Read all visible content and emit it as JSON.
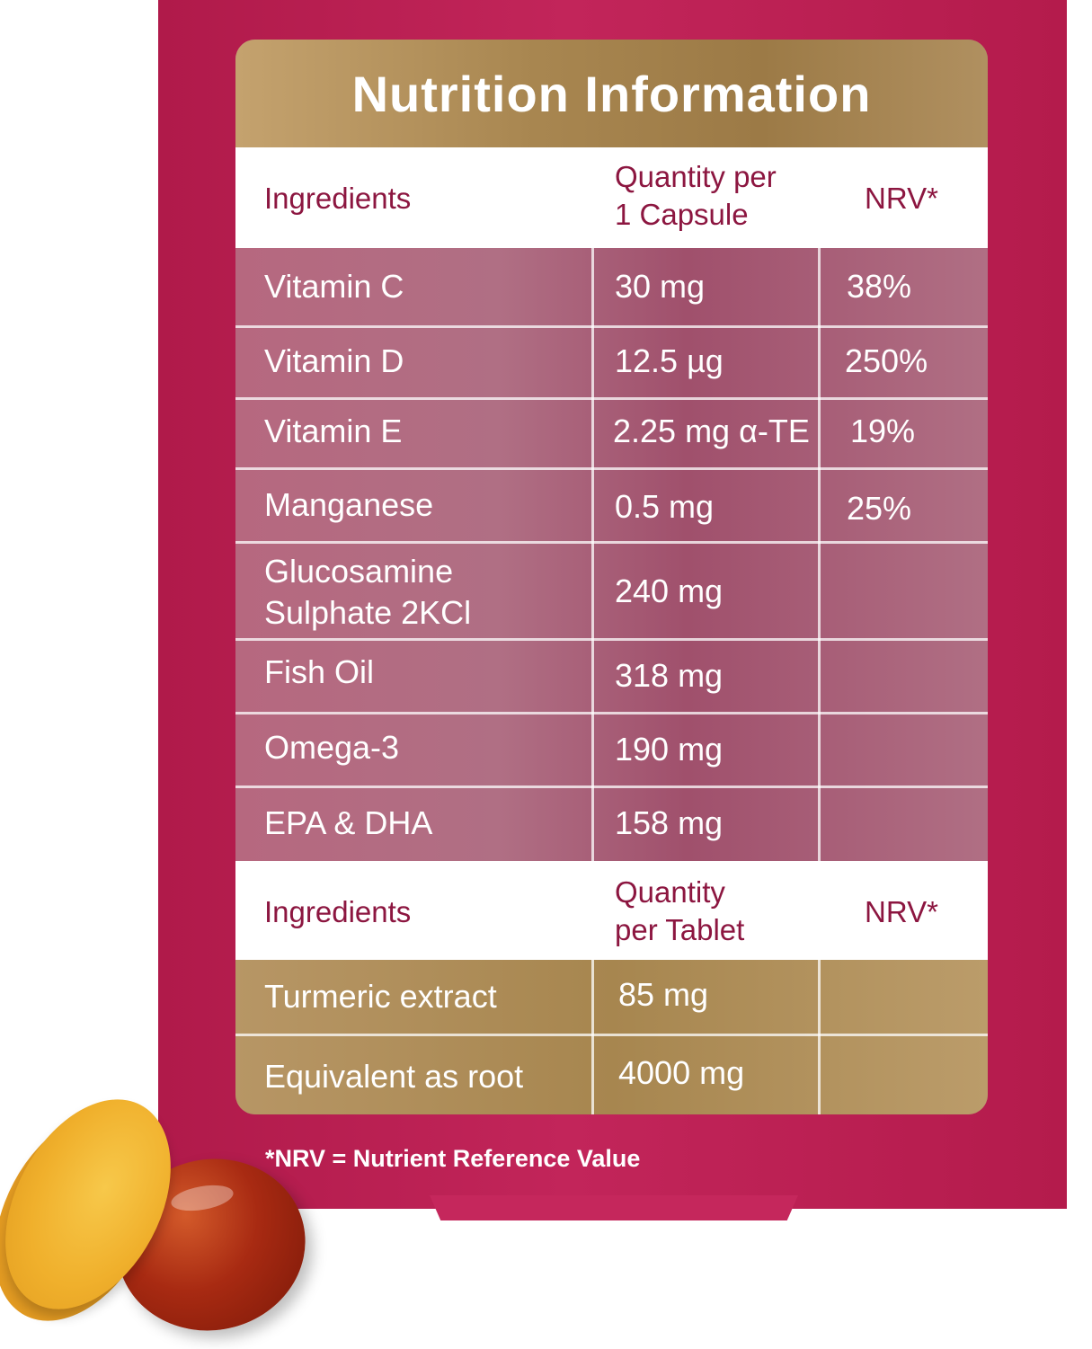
{
  "title": "Nutrition Information",
  "capsule_table": {
    "header": {
      "ingredients": "Ingredients",
      "quantity_line1": "Quantity per",
      "quantity_line2": "1 Capsule",
      "nrv": "NRV*"
    },
    "rows": [
      {
        "ingredient": "Vitamin C",
        "quantity": "30 mg",
        "nrv": "38%"
      },
      {
        "ingredient": "Vitamin D",
        "quantity": "12.5 µg",
        "nrv": "250%"
      },
      {
        "ingredient": "Vitamin E",
        "quantity": "2.25 mg α-TE",
        "nrv": "19%"
      },
      {
        "ingredient": "Manganese",
        "quantity": "0.5 mg",
        "nrv": "25%"
      },
      {
        "ingredient_line1": "Glucosamine",
        "ingredient_line2": "Sulphate 2KCl",
        "quantity": "240 mg",
        "nrv": ""
      },
      {
        "ingredient": "Fish Oil",
        "quantity": "318 mg",
        "nrv": ""
      },
      {
        "ingredient": "Omega-3",
        "quantity": "190 mg",
        "nrv": ""
      },
      {
        "ingredient": "EPA & DHA",
        "quantity": "158 mg",
        "nrv": ""
      }
    ]
  },
  "tablet_table": {
    "header": {
      "ingredients": "Ingredients",
      "quantity_line1": "Quantity",
      "quantity_line2": "per Tablet",
      "nrv": "NRV*"
    },
    "rows": [
      {
        "ingredient": "Turmeric extract",
        "quantity": "85 mg",
        "nrv": ""
      },
      {
        "ingredient": "Equivalent as root",
        "quantity": "4000 mg",
        "nrv": ""
      }
    ]
  },
  "footnote": "*NRV = Nutrient Reference Value",
  "colors": {
    "pack_magenta": "#b01a4a",
    "gold": "#a88650",
    "header_text": "#8c1640"
  }
}
